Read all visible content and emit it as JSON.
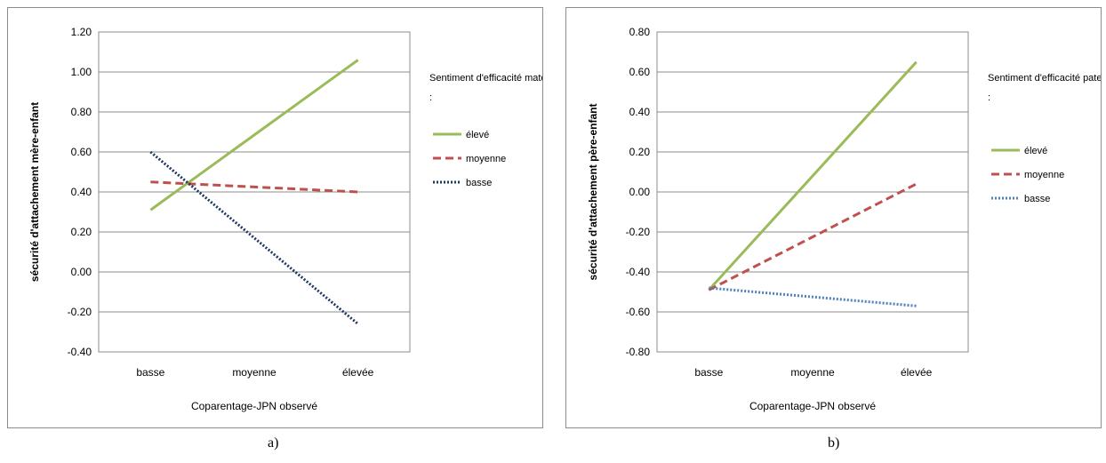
{
  "chart_data": [
    {
      "type": "line",
      "categories": [
        "basse",
        "moyenne",
        "élevée"
      ],
      "xlabel": "Coparentage-JPN observé",
      "ylabel": "sécurité d'attachement mère-enfant",
      "ylim": [
        -0.4,
        1.2
      ],
      "yticks": [
        "1.20",
        "1.00",
        "0.80",
        "0.60",
        "0.40",
        "0.20",
        "0.00",
        "-0.20",
        "-0.40"
      ],
      "legend_title": "Sentiment d'efficacité maternelle :",
      "legend_placement": "right",
      "grid": true,
      "series": [
        {
          "name": "élevé",
          "values": [
            0.31,
            0.685,
            1.06
          ],
          "color": "#9bbb59",
          "style": "solid"
        },
        {
          "name": "moyenne",
          "values": [
            0.45,
            0.425,
            0.4
          ],
          "color": "#c0504d",
          "style": "dashed"
        },
        {
          "name": "basse",
          "values": [
            0.6,
            0.17,
            -0.26
          ],
          "color": "#1f3864",
          "style": "dotted"
        }
      ]
    },
    {
      "type": "line",
      "categories": [
        "basse",
        "moyenne",
        "élevée"
      ],
      "xlabel": "Coparentage-JPN observé",
      "ylabel": "sécurité d'attachement père-enfant",
      "ylim": [
        -0.8,
        0.8
      ],
      "yticks": [
        "0.80",
        "0.60",
        "0.40",
        "0.20",
        "0.00",
        "-0.20",
        "-0.40",
        "-0.60",
        "-0.80"
      ],
      "legend_title": "Sentiment d'efficacité paternelle :",
      "legend_placement": "right",
      "grid": true,
      "series": [
        {
          "name": "élevé",
          "values": [
            -0.49,
            0.08,
            0.65
          ],
          "color": "#9bbb59",
          "style": "solid"
        },
        {
          "name": "moyenne",
          "values": [
            -0.49,
            -0.225,
            0.04
          ],
          "color": "#c0504d",
          "style": "dashed"
        },
        {
          "name": "basse",
          "values": [
            -0.48,
            -0.525,
            -0.57
          ],
          "color": "#4f81bd",
          "style": "dotted"
        }
      ]
    }
  ],
  "captions": [
    "a)",
    "b)"
  ]
}
